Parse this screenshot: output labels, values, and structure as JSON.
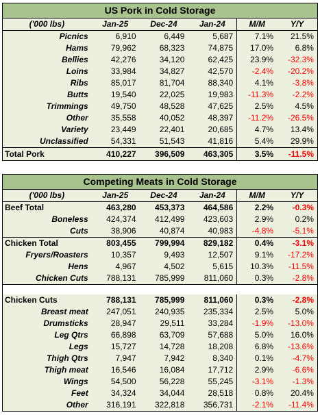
{
  "pork": {
    "title": "US Pork in Cold Storage",
    "headers": [
      "('000 lbs)",
      "Jan-25",
      "Dec-24",
      "Jan-24",
      "M/M",
      "Y/Y"
    ],
    "rows": [
      {
        "label": "Picnics",
        "v": [
          "6,910",
          "6,449",
          "5,687",
          "7.1%",
          "21.5%"
        ]
      },
      {
        "label": "Hams",
        "v": [
          "79,962",
          "68,323",
          "74,875",
          "17.0%",
          "6.8%"
        ]
      },
      {
        "label": "Bellies",
        "v": [
          "42,276",
          "34,120",
          "62,425",
          "23.9%",
          "-32.3%"
        ]
      },
      {
        "label": "Loins",
        "v": [
          "33,984",
          "34,827",
          "42,570",
          "-2.4%",
          "-20.2%"
        ]
      },
      {
        "label": "Ribs",
        "v": [
          "85,017",
          "81,704",
          "88,340",
          "4.1%",
          "-3.8%"
        ]
      },
      {
        "label": "Butts",
        "v": [
          "19,540",
          "22,025",
          "19,983",
          "-11.3%",
          "-2.2%"
        ]
      },
      {
        "label": "Trimmings",
        "v": [
          "49,750",
          "48,528",
          "47,625",
          "2.5%",
          "4.5%"
        ]
      },
      {
        "label": "Other",
        "v": [
          "35,558",
          "40,052",
          "48,397",
          "-11.2%",
          "-26.5%"
        ]
      },
      {
        "label": "Variety",
        "v": [
          "23,449",
          "22,401",
          "20,685",
          "4.7%",
          "13.4%"
        ]
      },
      {
        "label": "Unclassified",
        "v": [
          "54,331",
          "51,543",
          "41,816",
          "5.4%",
          "29.9%"
        ]
      }
    ],
    "total": {
      "label": "Total Pork",
      "v": [
        "410,227",
        "396,509",
        "463,305",
        "3.5%",
        "-11.5%"
      ]
    }
  },
  "meats": {
    "title": "Competing Meats in Cold Storage",
    "headers": [
      "('000 lbs)",
      "Jan-25",
      "Dec-24",
      "Jan-24",
      "M/M",
      "Y/Y"
    ],
    "beef_total": {
      "label": "Beef Total",
      "v": [
        "463,280",
        "453,373",
        "464,586",
        "2.2%",
        "-0.3%"
      ]
    },
    "beef": [
      {
        "label": "Boneless",
        "v": [
          "424,374",
          "412,499",
          "423,603",
          "2.9%",
          "0.2%"
        ]
      },
      {
        "label": "Cuts",
        "v": [
          "38,906",
          "40,874",
          "40,983",
          "-4.8%",
          "-5.1%"
        ]
      }
    ],
    "chicken_total": {
      "label": "Chicken Total",
      "v": [
        "803,455",
        "799,994",
        "829,182",
        "0.4%",
        "-3.1%"
      ]
    },
    "chicken": [
      {
        "label": "Fryers/Roasters",
        "v": [
          "10,357",
          "9,493",
          "12,507",
          "9.1%",
          "-17.2%"
        ]
      },
      {
        "label": "Hens",
        "v": [
          "4,967",
          "4,502",
          "5,615",
          "10.3%",
          "-11.5%"
        ]
      },
      {
        "label": "Chicken Cuts",
        "v": [
          "788,131",
          "785,999",
          "811,060",
          "0.3%",
          "-2.8%"
        ]
      }
    ],
    "cuts_total": {
      "label": "Chicken Cuts",
      "v": [
        "788,131",
        "785,999",
        "811,060",
        "0.3%",
        "-2.8%"
      ]
    },
    "cuts": [
      {
        "label": "Breast meat",
        "v": [
          "247,051",
          "240,935",
          "235,334",
          "2.5%",
          "5.0%"
        ]
      },
      {
        "label": "Drumsticks",
        "v": [
          "28,947",
          "29,511",
          "33,284",
          "-1.9%",
          "-13.0%"
        ]
      },
      {
        "label": "Leg Qtrs",
        "v": [
          "66,898",
          "63,709",
          "57,688",
          "5.0%",
          "16.0%"
        ]
      },
      {
        "label": "Legs",
        "v": [
          "15,727",
          "14,728",
          "18,208",
          "6.8%",
          "-13.6%"
        ]
      },
      {
        "label": "Thigh Qtrs",
        "v": [
          "7,947",
          "7,942",
          "8,340",
          "0.1%",
          "-4.7%"
        ]
      },
      {
        "label": "Thigh meat",
        "v": [
          "16,546",
          "16,084",
          "17,712",
          "2.9%",
          "-6.6%"
        ]
      },
      {
        "label": "Wings",
        "v": [
          "54,500",
          "56,228",
          "55,245",
          "-3.1%",
          "-1.3%"
        ]
      },
      {
        "label": "Feet",
        "v": [
          "34,324",
          "34,044",
          "28,518",
          "0.8%",
          "20.4%"
        ]
      },
      {
        "label": "Other",
        "v": [
          "316,191",
          "322,818",
          "356,731",
          "-2.1%",
          "-11.4%"
        ]
      }
    ]
  }
}
